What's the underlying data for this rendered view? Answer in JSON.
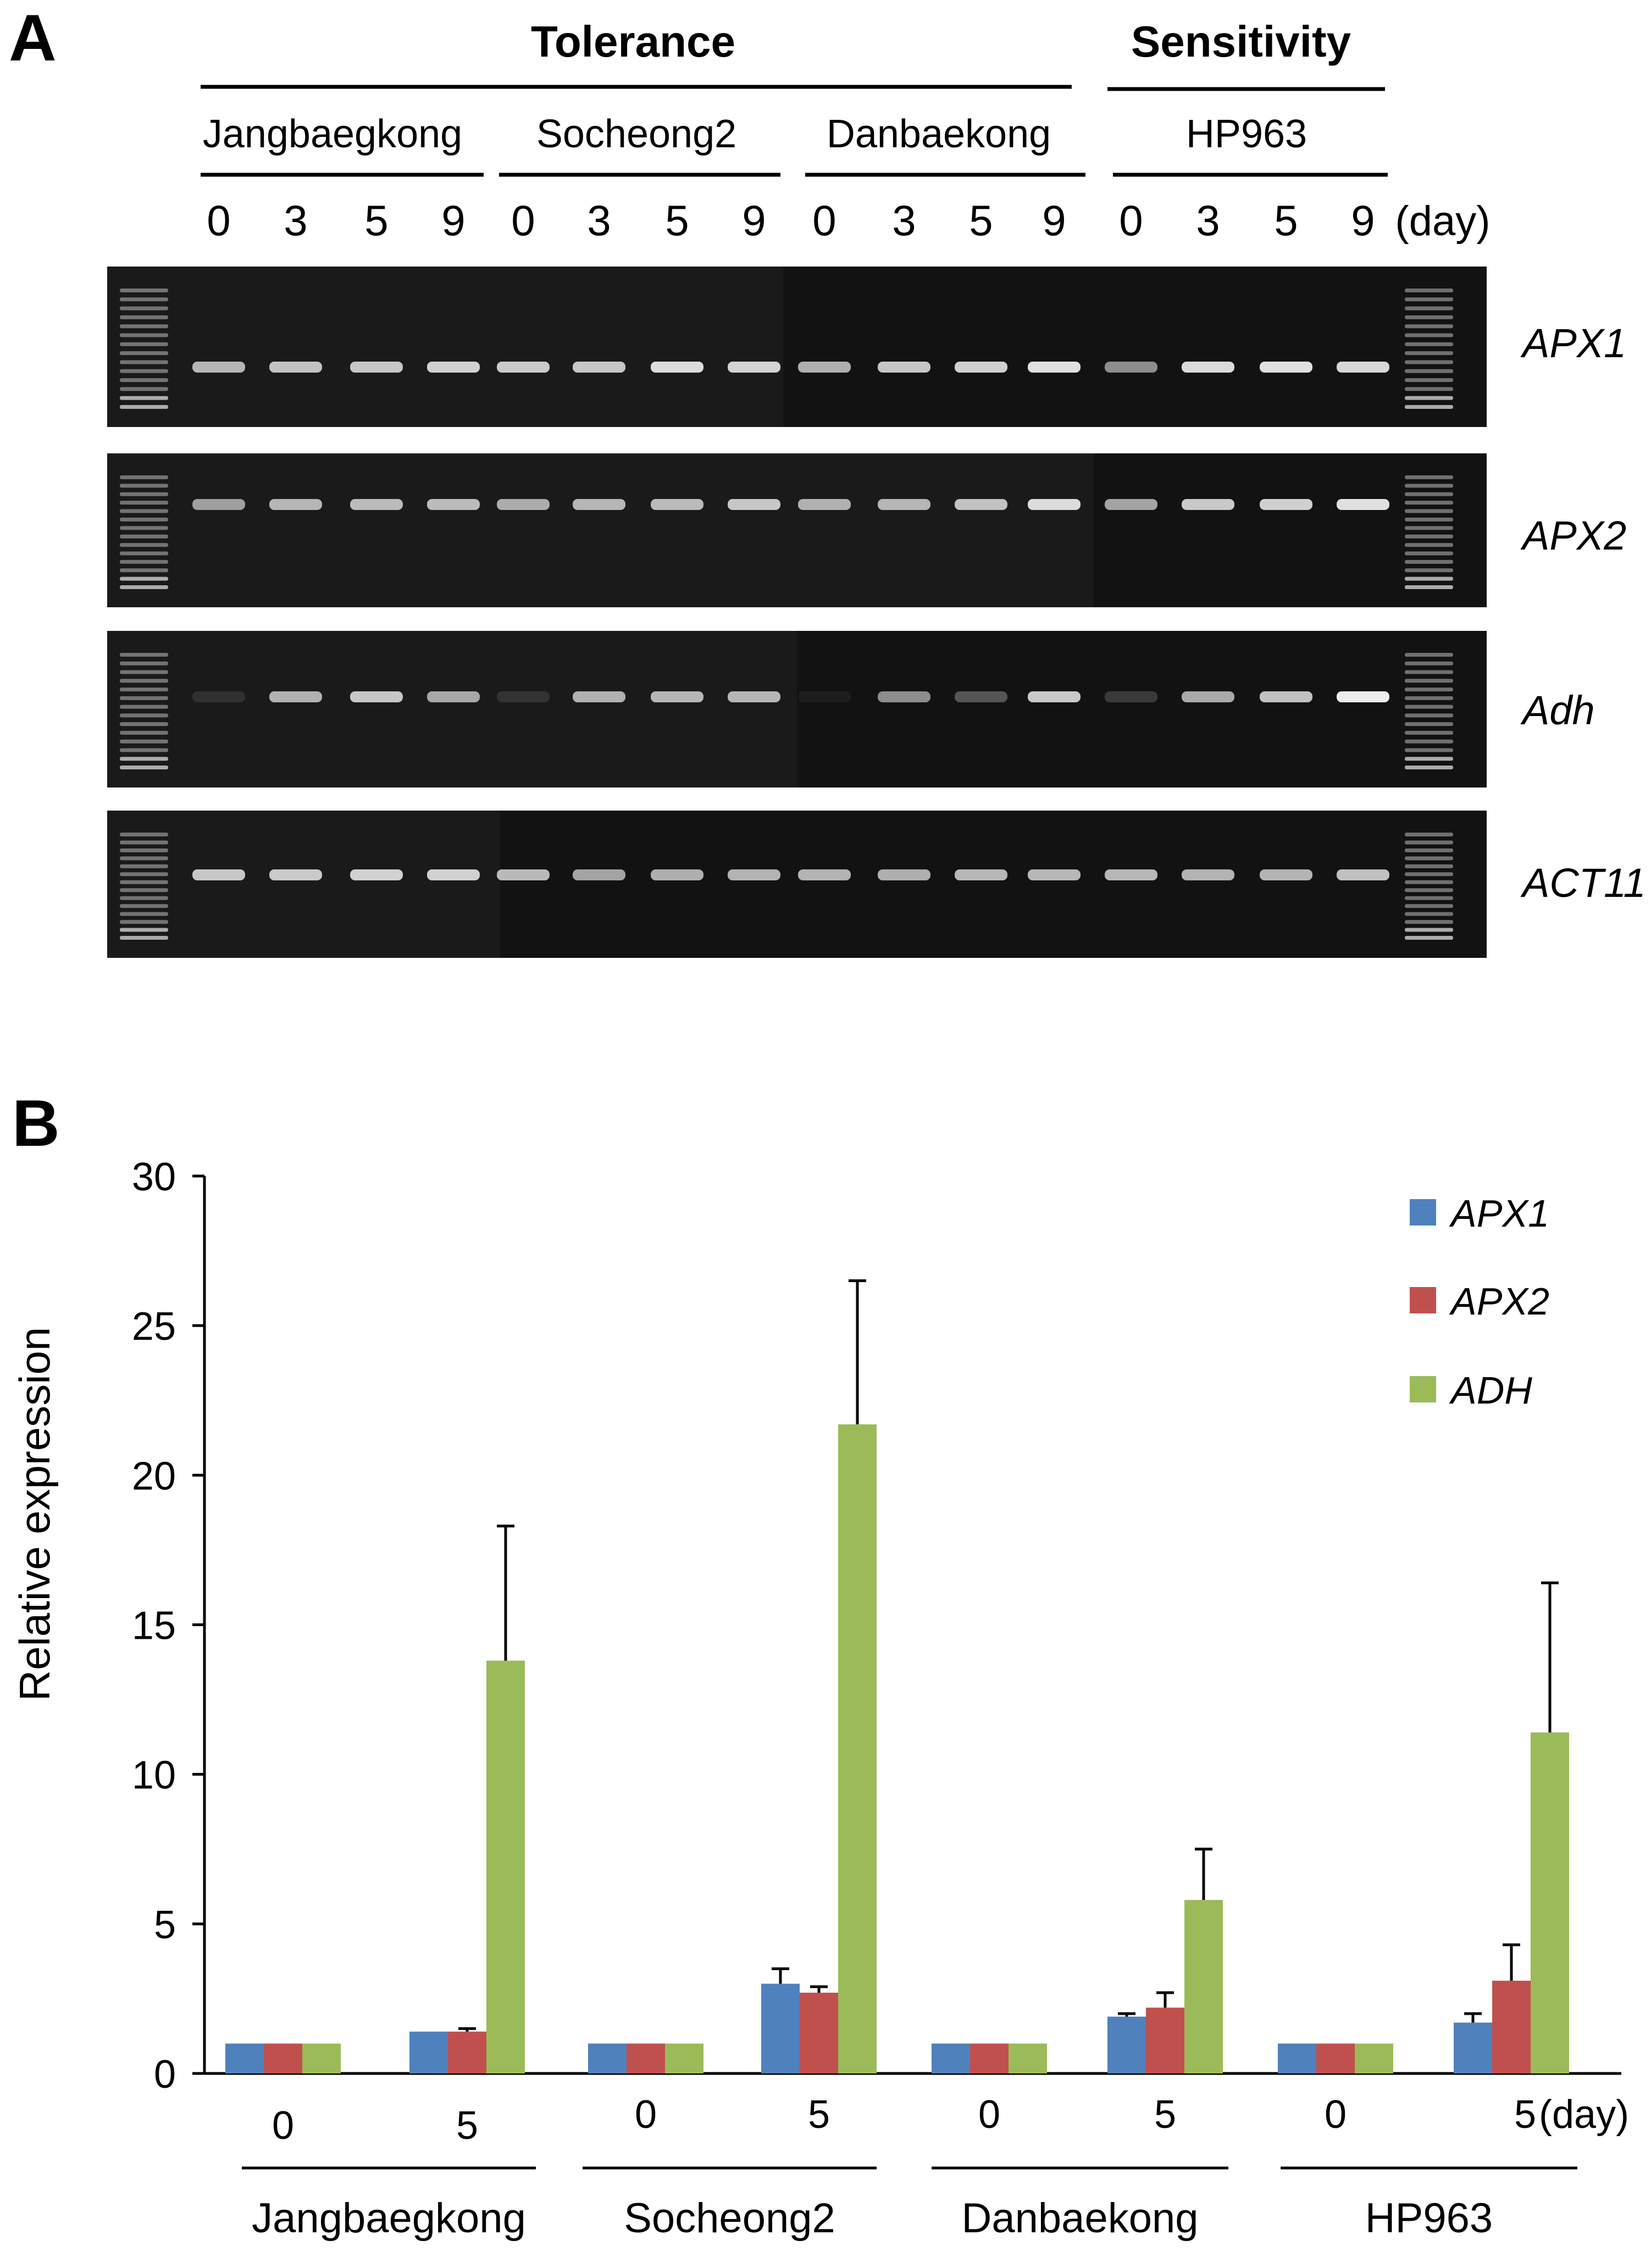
{
  "panel_a": {
    "panel_label": "A",
    "tolerance_label": "Tolerance",
    "sensitivity_label": "Sensitivity",
    "cultivars": [
      "Jangbaegkong",
      "Socheong2",
      "Danbaekong",
      "HP963"
    ],
    "days": [
      "0",
      "3",
      "5",
      "9"
    ],
    "day_unit": "(day)",
    "genes": [
      "APX1",
      "APX2",
      "Adh",
      "ACT11"
    ],
    "band_intensity": [
      [
        0.72,
        0.78,
        0.8,
        0.85,
        0.82,
        0.8,
        0.9,
        0.86,
        0.7,
        0.8,
        0.85,
        0.92,
        0.55,
        0.9,
        0.92,
        0.88
      ],
      [
        0.62,
        0.72,
        0.75,
        0.75,
        0.68,
        0.72,
        0.75,
        0.8,
        0.7,
        0.72,
        0.78,
        0.9,
        0.65,
        0.82,
        0.85,
        0.92
      ],
      [
        0.1,
        0.7,
        0.8,
        0.65,
        0.12,
        0.7,
        0.72,
        0.72,
        0.05,
        0.55,
        0.3,
        0.82,
        0.18,
        0.68,
        0.78,
        0.98
      ],
      [
        0.8,
        0.82,
        0.85,
        0.85,
        0.75,
        0.65,
        0.7,
        0.72,
        0.72,
        0.7,
        0.74,
        0.74,
        0.74,
        0.72,
        0.72,
        0.78
      ]
    ]
  },
  "panel_b": {
    "panel_label": "B",
    "day_unit": "(day)"
  },
  "colors": {
    "apx1": "#4f81bd",
    "apx2": "#c0504d",
    "adh": "#9bbb59",
    "gel_background": "#1a1a1a",
    "band": "#f2f2f2"
  },
  "chart_data": {
    "type": "bar",
    "title": "",
    "xlabel": "",
    "ylabel": "Relative expression",
    "ylim": [
      0,
      30
    ],
    "yticks": [
      "0",
      "5",
      "10",
      "15",
      "20",
      "25",
      "30"
    ],
    "groups": [
      "Jangbaegkong",
      "Socheong2",
      "Danbaekong",
      "HP963"
    ],
    "categories": [
      "0",
      "5",
      "0",
      "5",
      "0",
      "5",
      "0",
      "5"
    ],
    "series": [
      {
        "name": "APX1",
        "values": [
          1,
          1.4,
          1,
          3.0,
          1,
          1.9,
          1,
          1.7
        ],
        "errors": [
          0,
          0,
          0,
          0.5,
          0,
          0.1,
          0,
          0.3
        ]
      },
      {
        "name": "APX2",
        "values": [
          1,
          1.4,
          1,
          2.7,
          1,
          2.2,
          1,
          3.1
        ],
        "errors": [
          0,
          0.1,
          0,
          0.2,
          0,
          0.5,
          0,
          1.2
        ]
      },
      {
        "name": "ADH",
        "values": [
          1,
          13.8,
          1,
          21.7,
          1,
          5.8,
          1,
          11.4
        ],
        "errors": [
          0,
          4.5,
          0,
          4.8,
          0,
          1.7,
          0,
          5.0
        ]
      }
    ],
    "legend_position": "top-right"
  }
}
